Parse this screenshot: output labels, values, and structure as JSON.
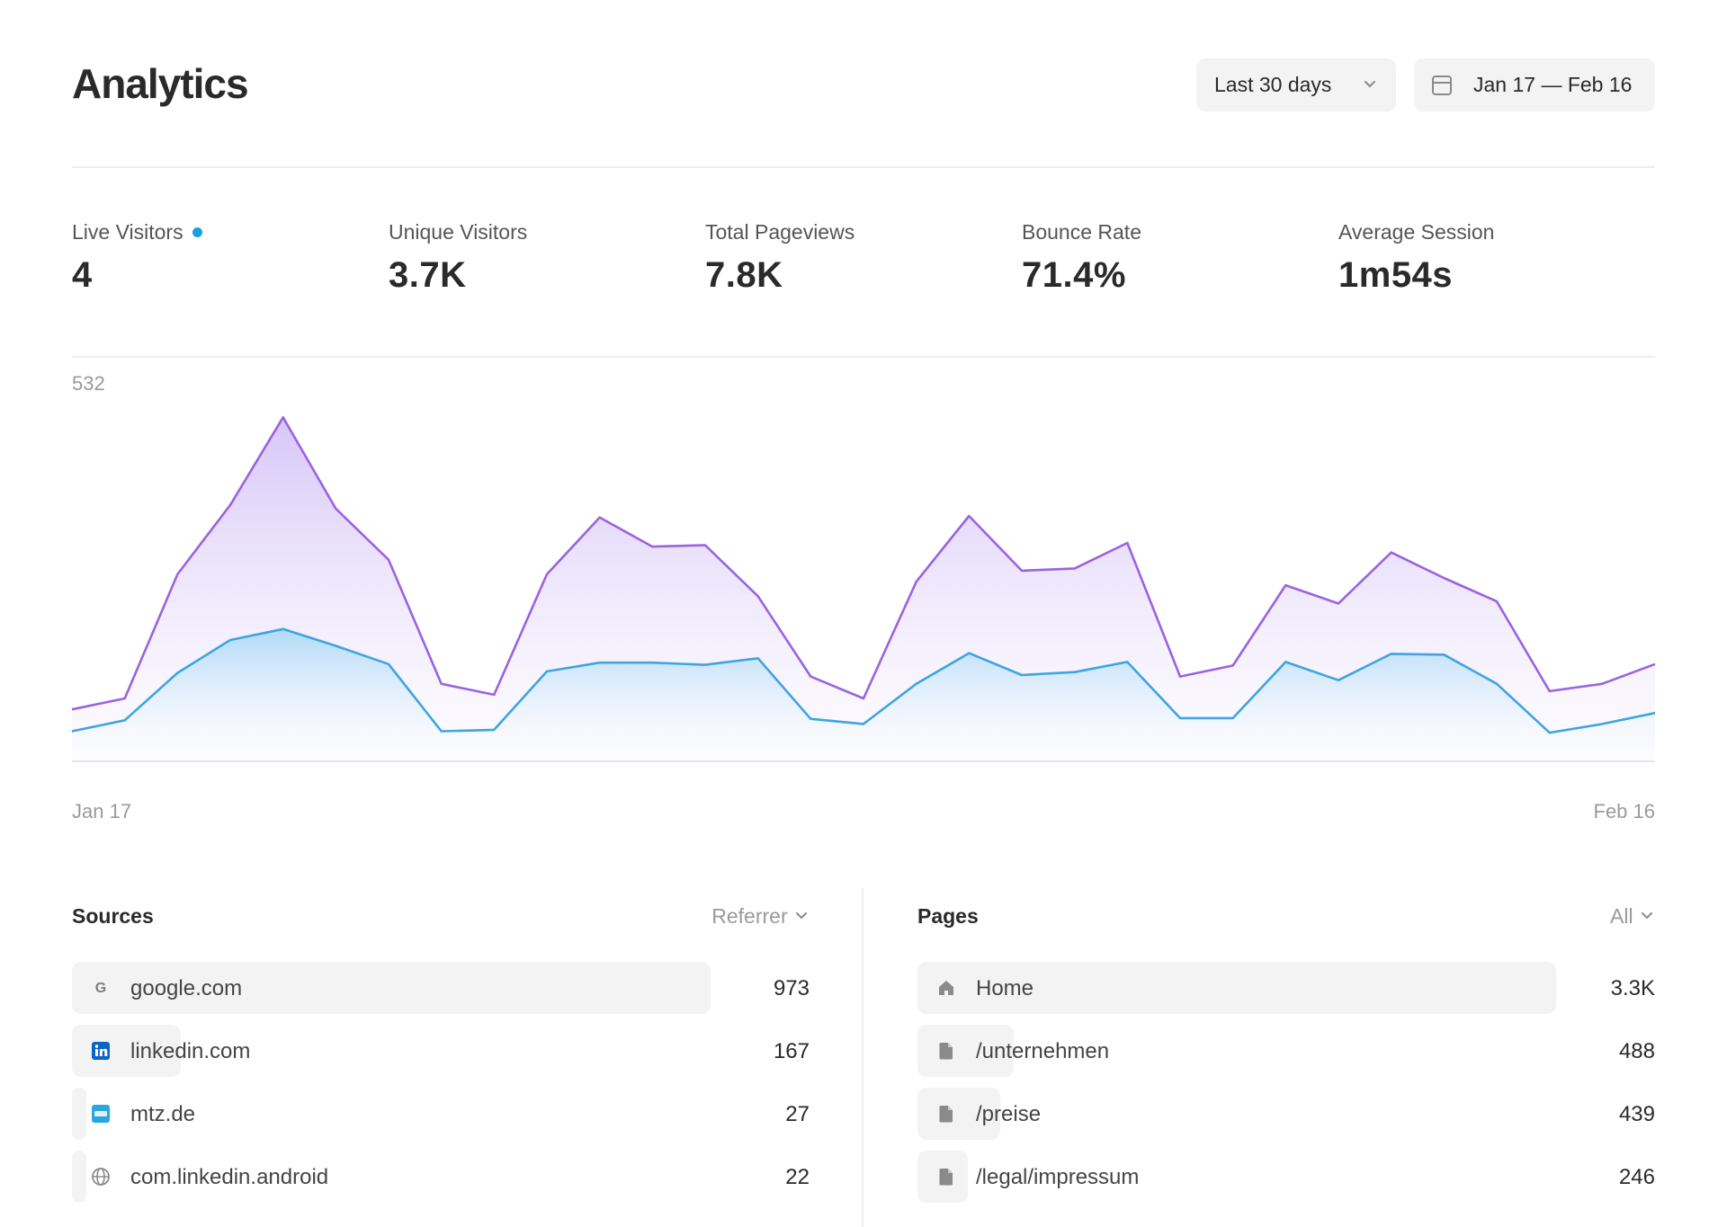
{
  "header": {
    "title": "Analytics",
    "range_label": "Last 30 days",
    "date_range": "Jan 17 — Feb 16"
  },
  "stats": [
    {
      "label": "Live Visitors",
      "value": "4",
      "live": true
    },
    {
      "label": "Unique Visitors",
      "value": "3.7K"
    },
    {
      "label": "Total Pageviews",
      "value": "7.8K"
    },
    {
      "label": "Bounce Rate",
      "value": "71.4%"
    },
    {
      "label": "Average Session",
      "value": "1m54s"
    }
  ],
  "chart": {
    "y_max_label": "532",
    "x_start_label": "Jan 17",
    "x_end_label": "Feb 16"
  },
  "chart_data": {
    "type": "area",
    "x": [
      "Jan 17",
      "Jan 18",
      "Jan 19",
      "Jan 20",
      "Jan 21",
      "Jan 22",
      "Jan 23",
      "Jan 24",
      "Jan 25",
      "Jan 26",
      "Jan 27",
      "Jan 28",
      "Jan 29",
      "Jan 30",
      "Jan 31",
      "Feb 1",
      "Feb 2",
      "Feb 3",
      "Feb 4",
      "Feb 5",
      "Feb 6",
      "Feb 7",
      "Feb 8",
      "Feb 9",
      "Feb 10",
      "Feb 11",
      "Feb 12",
      "Feb 13",
      "Feb 14",
      "Feb 15",
      "Feb 16"
    ],
    "ylim": [
      0,
      532
    ],
    "series": [
      {
        "color": "#9a63e0",
        "values": [
          70,
          85,
          255,
          350,
          470,
          345,
          275,
          105,
          90,
          255,
          333,
          293,
          295,
          225,
          115,
          85,
          245,
          335,
          260,
          263,
          298,
          115,
          130,
          240,
          215,
          285,
          250,
          218,
          95,
          105,
          132
        ]
      },
      {
        "color": "#3fa4e0",
        "values": [
          40,
          55,
          120,
          165,
          180,
          157,
          132,
          40,
          42,
          122,
          134,
          134,
          131,
          140,
          57,
          50,
          105,
          147,
          117,
          121,
          135,
          58,
          58,
          135,
          110,
          146,
          145,
          105,
          38,
          50,
          65
        ]
      }
    ]
  },
  "sources": {
    "title": "Sources",
    "filter": "Referrer",
    "rows": [
      {
        "label": "google.com",
        "value": "973",
        "icon": "google-icon",
        "ratio": 1.0
      },
      {
        "label": "linkedin.com",
        "value": "167",
        "icon": "linkedin-icon",
        "ratio": 0.17
      },
      {
        "label": "mtz.de",
        "value": "27",
        "icon": "mtz-icon",
        "ratio": 0.03
      },
      {
        "label": "com.linkedin.android",
        "value": "22",
        "icon": "globe-icon",
        "ratio": 0.02
      }
    ]
  },
  "pages": {
    "title": "Pages",
    "filter": "All",
    "rows": [
      {
        "label": "Home",
        "value": "3.3K",
        "icon": "home-icon",
        "ratio": 1.0
      },
      {
        "label": "/unternehmen",
        "value": "488",
        "icon": "file-icon",
        "ratio": 0.15
      },
      {
        "label": "/preise",
        "value": "439",
        "icon": "file-icon",
        "ratio": 0.13
      },
      {
        "label": "/legal/impressum",
        "value": "246",
        "icon": "file-icon",
        "ratio": 0.075
      }
    ]
  }
}
